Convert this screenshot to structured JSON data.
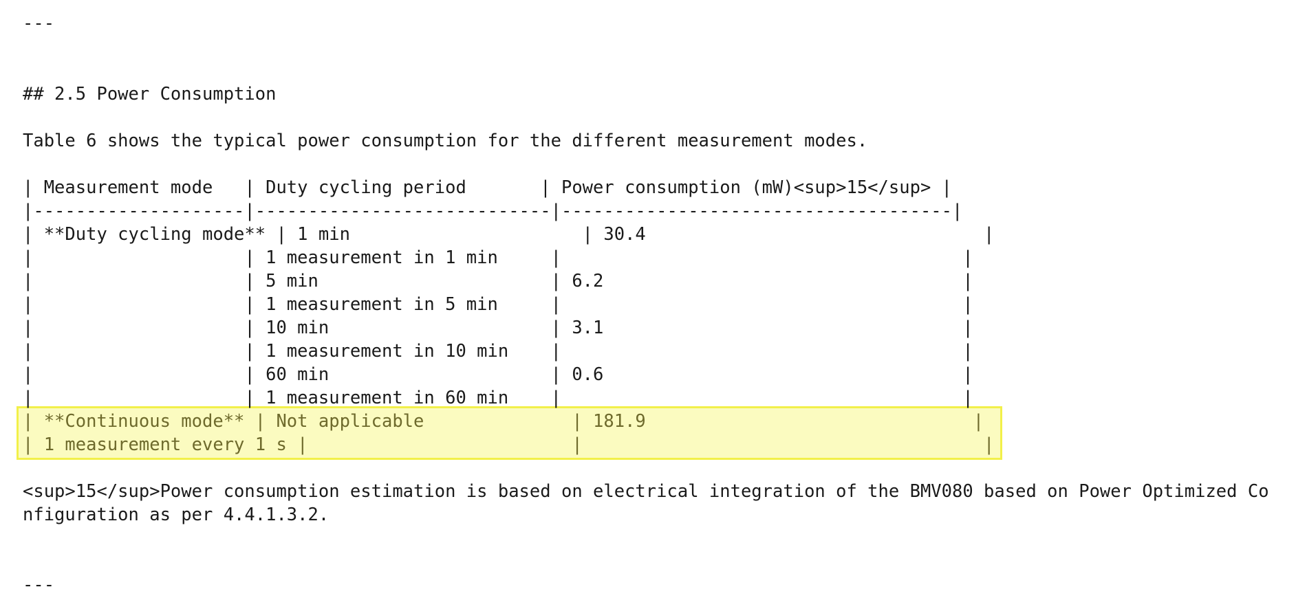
{
  "lines": [
    "---",
    "## 2.5 Power Consumption",
    "Table 6 shows the typical power consumption for the different measurement modes.",
    "| Measurement mode   | Duty cycling period       | Power consumption (mW)<sup>15</sup> |",
    "|--------------------|----------------------------|-------------------------------------|",
    "| **Duty cycling mode** | 1 min                      | 30.4                                |",
    "|                    | 1 measurement in 1 min     |                                      |",
    "|                    | 5 min                      | 6.2                                  |",
    "|                    | 1 measurement in 5 min     |                                      |",
    "|                    | 10 min                     | 3.1                                  |",
    "|                    | 1 measurement in 10 min    |                                      |",
    "|                    | 60 min                     | 0.6                                  |",
    "|                    | 1 measurement in 60 min    |                                      |",
    "| **Continuous mode** | Not applicable              | 181.9                               |",
    "| 1 measurement every 1 s |                         |                                      |",
    "<sup>15</sup>Power consumption estimation is based on electrical integration of the BMV080 based on Power Optimized Co",
    "nfiguration as per 4.4.1.3.2.",
    "---"
  ]
}
